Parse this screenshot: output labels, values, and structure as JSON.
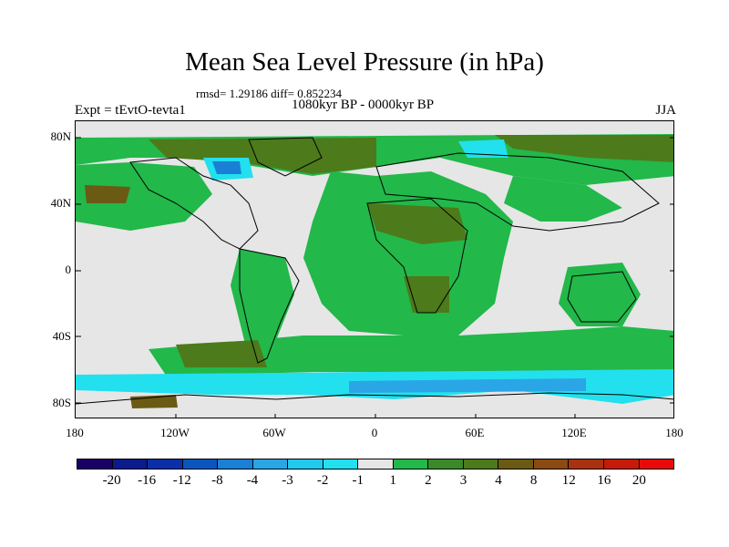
{
  "header": {
    "title": "Mean Sea Level Pressure (in hPa)",
    "stats": "rmsd= 1.29186 diff= 0.852234",
    "subtitle": "1080kyr BP - 0000kyr BP",
    "experiment": "Expt = tEvtO-tevta1",
    "season": "JJA"
  },
  "axes": {
    "lat_labels": [
      "80N",
      "40N",
      "0",
      "40S",
      "80S"
    ],
    "lon_labels": [
      "180",
      "120W",
      "60W",
      "0",
      "60E",
      "120E",
      "180"
    ]
  },
  "colorbar": {
    "labels": [
      "-20",
      "-16",
      "-12",
      "-8",
      "-4",
      "-3",
      "-2",
      "-1",
      "1",
      "2",
      "3",
      "4",
      "8",
      "12",
      "16",
      "20"
    ],
    "colors": [
      "#1a0066",
      "#0b1a8c",
      "#0a2fa8",
      "#0a55c0",
      "#1a80d6",
      "#2aa6e6",
      "#22c8ee",
      "#22e0ee",
      "#e6e6e6",
      "#22b84a",
      "#3a8a2a",
      "#4d7a1a",
      "#6b5a14",
      "#8a4a12",
      "#a83210",
      "#c81a08",
      "#e80a0a"
    ]
  },
  "map": {
    "background_color": "#e6e6e6",
    "green_color": "#22b84a",
    "olive_color": "#4d7a1a",
    "brown_color": "#6b5a14",
    "cyan_color": "#22e0ee",
    "blue_color": "#1a80d6"
  }
}
